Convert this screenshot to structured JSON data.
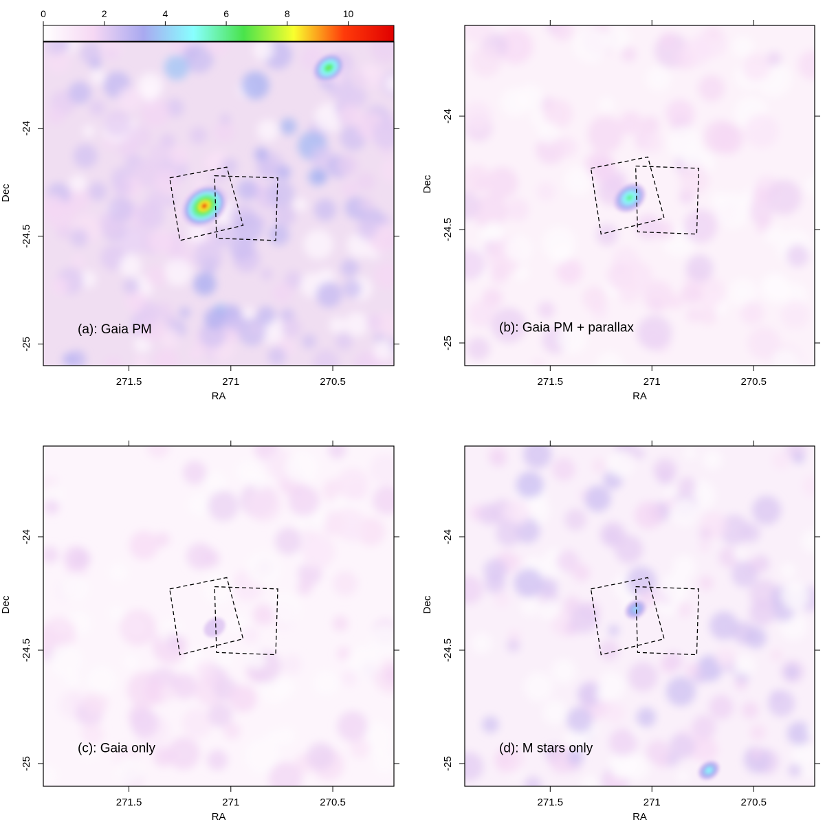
{
  "figure": {
    "colorbar": {
      "ticks": [
        0,
        2,
        4,
        6,
        8,
        10
      ],
      "range": [
        0,
        11.5
      ],
      "stops": [
        "#ffffff",
        "#f6d8f4",
        "#a9a9f0",
        "#88ffff",
        "#49e34b",
        "#f9ff2e",
        "#ff3b0a",
        "#e00000"
      ]
    }
  },
  "chart_data": [
    {
      "type": "heatmap",
      "panel": "a",
      "label": "(a): Gaia PM",
      "xlabel": "RA",
      "ylabel": "Dec",
      "xlim": [
        271.92,
        270.2
      ],
      "ylim": [
        -25.1,
        -23.6
      ],
      "xticks": [
        271.5,
        271,
        270.5
      ],
      "yticks": [
        -24,
        -24.5,
        -25
      ],
      "xtick_labels": [
        "271.5",
        "271",
        "270.5"
      ],
      "ytick_labels": [
        "-24",
        "-24.5",
        "-25"
      ],
      "peaks": [
        {
          "ra": 271.13,
          "dec": -24.36,
          "value": 11.3
        },
        {
          "ra": 270.52,
          "dec": -23.72,
          "value": 8.0
        }
      ],
      "fields": [
        [
          [
            271.3,
            -24.23
          ],
          [
            271.02,
            -24.18
          ],
          [
            270.94,
            -24.45
          ],
          [
            271.25,
            -24.52
          ]
        ],
        [
          [
            271.08,
            -24.22
          ],
          [
            270.77,
            -24.23
          ],
          [
            270.78,
            -24.52
          ],
          [
            271.07,
            -24.51
          ]
        ]
      ]
    },
    {
      "type": "heatmap",
      "panel": "b",
      "label": "(b): Gaia PM + parallax",
      "xlabel": "RA",
      "ylabel": "Dec",
      "xlim": [
        271.92,
        270.2
      ],
      "ylim": [
        -25.1,
        -23.6
      ],
      "xticks": [
        271.5,
        271,
        270.5
      ],
      "yticks": [
        -24,
        -24.5,
        -25
      ],
      "xtick_labels": [
        "271.5",
        "271",
        "270.5"
      ],
      "ytick_labels": [
        "-24",
        "-24.5",
        "-25"
      ],
      "peaks": [
        {
          "ra": 271.11,
          "dec": -24.36,
          "value": 7.0
        }
      ],
      "fields": [
        [
          [
            271.3,
            -24.23
          ],
          [
            271.02,
            -24.18
          ],
          [
            270.94,
            -24.45
          ],
          [
            271.25,
            -24.52
          ]
        ],
        [
          [
            271.08,
            -24.22
          ],
          [
            270.77,
            -24.23
          ],
          [
            270.78,
            -24.52
          ],
          [
            271.07,
            -24.51
          ]
        ]
      ]
    },
    {
      "type": "heatmap",
      "panel": "c",
      "label": "(c): Gaia only",
      "xlabel": "RA",
      "ylabel": "Dec",
      "xlim": [
        271.92,
        270.2
      ],
      "ylim": [
        -25.1,
        -23.6
      ],
      "xticks": [
        271.5,
        271,
        270.5
      ],
      "yticks": [
        -24,
        -24.5,
        -25
      ],
      "xtick_labels": [
        "271.5",
        "271",
        "270.5"
      ],
      "ytick_labels": [
        "-24",
        "-24.5",
        "-25"
      ],
      "peaks": [
        {
          "ra": 271.08,
          "dec": -24.4,
          "value": 1.6
        }
      ],
      "fields": [
        [
          [
            271.3,
            -24.23
          ],
          [
            271.02,
            -24.18
          ],
          [
            270.94,
            -24.45
          ],
          [
            271.25,
            -24.52
          ]
        ],
        [
          [
            271.08,
            -24.22
          ],
          [
            270.77,
            -24.23
          ],
          [
            270.78,
            -24.52
          ],
          [
            271.07,
            -24.51
          ]
        ]
      ]
    },
    {
      "type": "heatmap",
      "panel": "d",
      "label": "(d): M stars only",
      "xlabel": "RA",
      "ylabel": "Dec",
      "xlim": [
        271.92,
        270.2
      ],
      "ylim": [
        -25.1,
        -23.6
      ],
      "xticks": [
        271.5,
        271,
        270.5
      ],
      "yticks": [
        -24,
        -24.5,
        -25
      ],
      "xtick_labels": [
        "271.5",
        "271",
        "270.5"
      ],
      "ytick_labels": [
        "-24",
        "-24.5",
        "-25"
      ],
      "peaks": [
        {
          "ra": 271.08,
          "dec": -24.32,
          "value": 4.5
        },
        {
          "ra": 270.72,
          "dec": -25.03,
          "value": 5.5
        }
      ],
      "fields": [
        [
          [
            271.3,
            -24.23
          ],
          [
            271.02,
            -24.18
          ],
          [
            270.94,
            -24.45
          ],
          [
            271.25,
            -24.52
          ]
        ],
        [
          [
            271.08,
            -24.22
          ],
          [
            270.77,
            -24.23
          ],
          [
            270.78,
            -24.52
          ],
          [
            271.07,
            -24.51
          ]
        ]
      ]
    }
  ]
}
